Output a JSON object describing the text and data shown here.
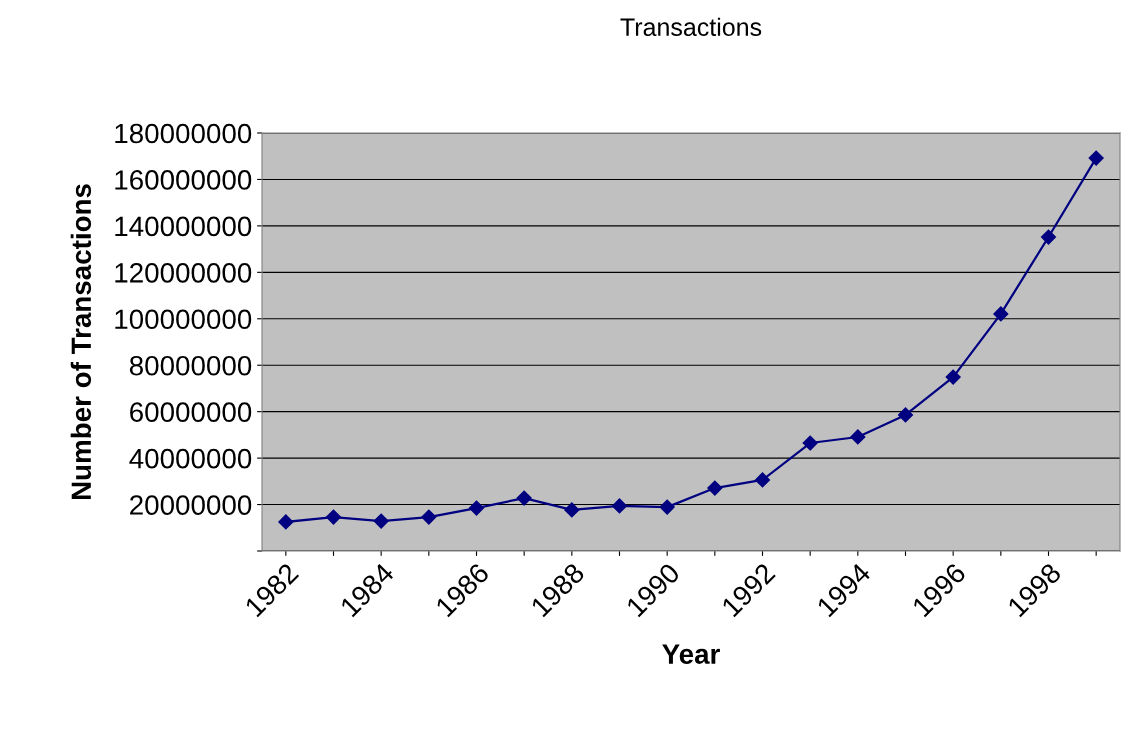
{
  "chart_data": {
    "type": "line",
    "title": "Transactions",
    "xlabel": "Year",
    "ylabel": "Number of Transactions",
    "categories": [
      "1982",
      null,
      "1984",
      null,
      "1986",
      null,
      "1988",
      null,
      "1990",
      null,
      "1992",
      null,
      "1994",
      null,
      "1996",
      null,
      "1998",
      null
    ],
    "series": [
      {
        "color": "#000080",
        "values": [
          12500000,
          14600000,
          12900000,
          14600000,
          18500000,
          22800000,
          17700000,
          19400000,
          18900000,
          27100000,
          30600000,
          46500000,
          49100000,
          58600000,
          74900000,
          102100000,
          135200000,
          169200000
        ]
      }
    ],
    "ylim": [
      0,
      180000000
    ],
    "yticks": [
      {
        "value": 0,
        "label": null
      },
      20000000,
      40000000,
      60000000,
      80000000,
      100000000,
      120000000,
      140000000,
      160000000,
      180000000
    ],
    "grid": "y",
    "marker": "diamond",
    "line_style": "solid"
  }
}
